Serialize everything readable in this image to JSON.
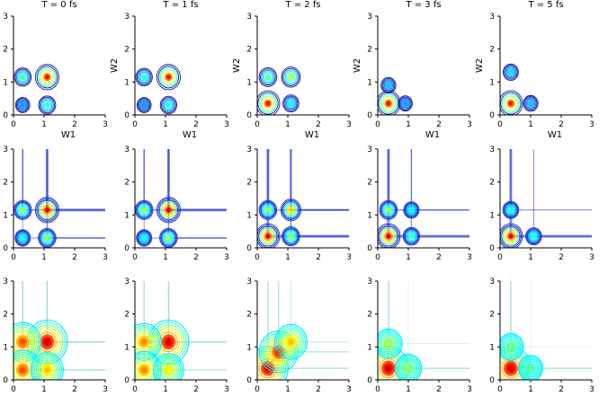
{
  "figure": {
    "column_titles": [
      "T = 0 fs",
      "T = 1 fs",
      "T = 2 fs",
      "T = 3 fs",
      "T = 5 fs"
    ],
    "xlabel": "W1",
    "ylabel": "W2"
  },
  "chart_data": {
    "type": "contour",
    "grid": "3 rows x 5 columns",
    "xlim": [
      0,
      3
    ],
    "ylim": [
      0,
      3
    ],
    "xticks": [
      "0",
      "1",
      "2",
      "3"
    ],
    "yticks": [
      "0",
      "1",
      "2",
      "3"
    ],
    "grid_lines": false,
    "rows": [
      {
        "row": 1,
        "colormap": "jet",
        "line_style": "outer contours dark blue"
      },
      {
        "row": 2,
        "colormap": "jet",
        "line_style": "contour lines with cross ridges"
      },
      {
        "row": 3,
        "colormap": "jet",
        "line_style": "filled-look dense contours"
      }
    ],
    "panels": [
      {
        "row": 1,
        "col": 1,
        "peaks": [
          {
            "x": 1.1,
            "y": 1.15,
            "amp": 1.0
          },
          {
            "x": 0.3,
            "y": 1.15,
            "amp": 0.45
          },
          {
            "x": 1.1,
            "y": 0.3,
            "amp": 0.45
          },
          {
            "x": 0.3,
            "y": 0.3,
            "amp": 0.2
          }
        ]
      },
      {
        "row": 1,
        "col": 2,
        "peaks": [
          {
            "x": 1.1,
            "y": 1.15,
            "amp": 1.0
          },
          {
            "x": 0.3,
            "y": 1.15,
            "amp": 0.4
          },
          {
            "x": 1.1,
            "y": 0.3,
            "amp": 0.4
          },
          {
            "x": 0.3,
            "y": 0.3,
            "amp": 0.2
          }
        ]
      },
      {
        "row": 1,
        "col": 3,
        "peaks": [
          {
            "x": 0.35,
            "y": 0.35,
            "amp": 1.0
          },
          {
            "x": 1.1,
            "y": 1.15,
            "amp": 0.6
          },
          {
            "x": 0.35,
            "y": 1.15,
            "amp": 0.5
          },
          {
            "x": 1.1,
            "y": 0.35,
            "amp": 0.35
          }
        ]
      },
      {
        "row": 1,
        "col": 4,
        "peaks": [
          {
            "x": 0.35,
            "y": 0.35,
            "amp": 1.0
          },
          {
            "x": 0.35,
            "y": 0.9,
            "amp": 0.25
          },
          {
            "x": 0.9,
            "y": 0.35,
            "amp": 0.2
          }
        ]
      },
      {
        "row": 1,
        "col": 5,
        "peaks": [
          {
            "x": 0.35,
            "y": 0.35,
            "amp": 1.0
          },
          {
            "x": 0.35,
            "y": 1.3,
            "amp": 0.3
          },
          {
            "x": 1.0,
            "y": 0.35,
            "amp": 0.25
          }
        ]
      },
      {
        "row": 2,
        "col": 1,
        "peaks": [
          {
            "x": 1.1,
            "y": 1.15,
            "amp": 1.0
          },
          {
            "x": 0.3,
            "y": 1.15,
            "amp": 0.5
          },
          {
            "x": 1.1,
            "y": 0.3,
            "amp": 0.5
          },
          {
            "x": 0.3,
            "y": 0.3,
            "amp": 0.3
          }
        ]
      },
      {
        "row": 2,
        "col": 2,
        "peaks": [
          {
            "x": 1.1,
            "y": 1.15,
            "amp": 1.0
          },
          {
            "x": 0.3,
            "y": 1.15,
            "amp": 0.5
          },
          {
            "x": 1.1,
            "y": 0.3,
            "amp": 0.5
          },
          {
            "x": 0.3,
            "y": 0.3,
            "amp": 0.3
          }
        ]
      },
      {
        "row": 2,
        "col": 3,
        "peaks": [
          {
            "x": 0.35,
            "y": 0.35,
            "amp": 1.0
          },
          {
            "x": 1.1,
            "y": 1.15,
            "amp": 0.7
          },
          {
            "x": 0.35,
            "y": 1.15,
            "amp": 0.5
          },
          {
            "x": 1.1,
            "y": 0.35,
            "amp": 0.5
          }
        ]
      },
      {
        "row": 2,
        "col": 4,
        "peaks": [
          {
            "x": 0.35,
            "y": 0.35,
            "amp": 1.0
          },
          {
            "x": 0.35,
            "y": 1.15,
            "amp": 0.5
          },
          {
            "x": 1.1,
            "y": 0.35,
            "amp": 0.4
          },
          {
            "x": 1.1,
            "y": 1.15,
            "amp": 0.3
          }
        ]
      },
      {
        "row": 2,
        "col": 5,
        "peaks": [
          {
            "x": 0.35,
            "y": 0.35,
            "amp": 1.0
          },
          {
            "x": 0.35,
            "y": 1.15,
            "amp": 0.35
          },
          {
            "x": 1.1,
            "y": 0.35,
            "amp": 0.35
          }
        ]
      },
      {
        "row": 3,
        "col": 1,
        "peaks": [
          {
            "x": 1.1,
            "y": 1.15,
            "amp": 1.0
          },
          {
            "x": 0.3,
            "y": 1.15,
            "amp": 0.8
          },
          {
            "x": 0.3,
            "y": 0.3,
            "amp": 0.8
          },
          {
            "x": 1.1,
            "y": 0.3,
            "amp": 0.6
          }
        ]
      },
      {
        "row": 3,
        "col": 2,
        "peaks": [
          {
            "x": 1.1,
            "y": 1.15,
            "amp": 1.0
          },
          {
            "x": 0.3,
            "y": 1.15,
            "amp": 0.7
          },
          {
            "x": 0.3,
            "y": 0.3,
            "amp": 0.7
          },
          {
            "x": 1.1,
            "y": 0.3,
            "amp": 0.5
          }
        ]
      },
      {
        "row": 3,
        "col": 3,
        "peaks": [
          {
            "x": 0.35,
            "y": 0.35,
            "amp": 1.0
          },
          {
            "x": 0.7,
            "y": 0.85,
            "amp": 0.9
          },
          {
            "x": 1.1,
            "y": 1.15,
            "amp": 0.6
          }
        ]
      },
      {
        "row": 3,
        "col": 4,
        "peaks": [
          {
            "x": 0.35,
            "y": 0.35,
            "amp": 1.0
          },
          {
            "x": 0.35,
            "y": 1.1,
            "amp": 0.35
          },
          {
            "x": 1.0,
            "y": 0.35,
            "amp": 0.3
          }
        ]
      },
      {
        "row": 3,
        "col": 5,
        "peaks": [
          {
            "x": 0.35,
            "y": 0.35,
            "amp": 1.0
          },
          {
            "x": 0.35,
            "y": 1.0,
            "amp": 0.25
          },
          {
            "x": 1.0,
            "y": 0.35,
            "amp": 0.2
          }
        ]
      }
    ]
  }
}
